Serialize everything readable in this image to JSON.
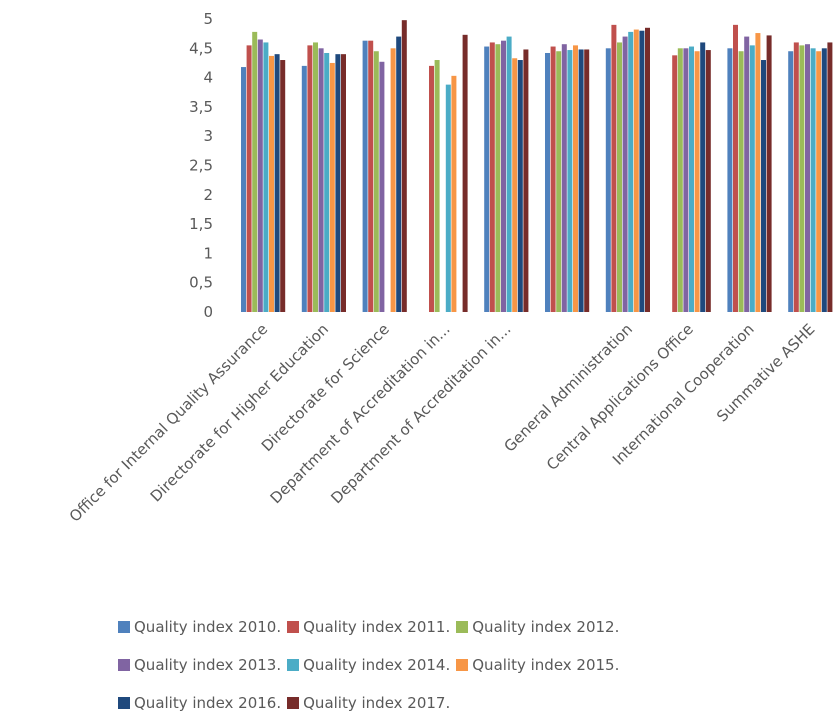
{
  "chart_data": {
    "type": "bar",
    "title": "",
    "xlabel": "",
    "ylabel": "",
    "ylim": [
      0,
      5
    ],
    "ytick_labels": [
      "0",
      "0,5",
      "1",
      "1,5",
      "2",
      "2,5",
      "3",
      "3,5",
      "4",
      "4,5",
      "5"
    ],
    "grid": false,
    "legend_position": "bottom",
    "categories": [
      "Office for Internal Quality Assurance",
      "Directorate for Higher Education",
      "Directorate for Science",
      "Department of Accreditation in...",
      "Department of Accreditation in...",
      "",
      "General Administration",
      "Central Applications Office",
      "International Cooperation",
      "Summative ASHE"
    ],
    "series": [
      {
        "name": "Quality index 2010.",
        "color": "#4F81BD",
        "values": [
          4.18,
          4.2,
          4.63,
          null,
          4.53,
          4.42,
          4.5,
          null,
          4.5,
          4.45
        ]
      },
      {
        "name": "Quality index 2011.",
        "color": "#C0504D",
        "values": [
          4.55,
          4.55,
          4.63,
          4.2,
          4.6,
          4.53,
          4.9,
          4.38,
          4.9,
          4.6
        ]
      },
      {
        "name": "Quality index 2012.",
        "color": "#9BBB59",
        "values": [
          4.78,
          4.6,
          4.45,
          4.3,
          4.57,
          4.45,
          4.6,
          4.5,
          4.45,
          4.55
        ]
      },
      {
        "name": "Quality index 2013.",
        "color": "#8064A2",
        "values": [
          4.65,
          4.5,
          4.27,
          null,
          4.63,
          4.57,
          4.7,
          4.5,
          4.7,
          4.57
        ]
      },
      {
        "name": "Quality index 2014.",
        "color": "#4BACC6",
        "values": [
          4.6,
          4.42,
          null,
          3.88,
          4.7,
          4.47,
          4.78,
          4.53,
          4.55,
          4.5
        ]
      },
      {
        "name": "Quality index 2015.",
        "color": "#F79646",
        "values": [
          4.37,
          4.25,
          4.5,
          4.03,
          4.33,
          4.55,
          4.82,
          4.45,
          4.76,
          4.45
        ]
      },
      {
        "name": "Quality index 2016.",
        "color": "#1F497D",
        "values": [
          4.4,
          4.4,
          4.7,
          null,
          4.3,
          4.48,
          4.8,
          4.6,
          4.3,
          4.5
        ]
      },
      {
        "name": "Quality index 2017.",
        "color": "#772C2A",
        "values": [
          4.3,
          4.4,
          4.98,
          4.73,
          4.48,
          4.48,
          4.85,
          4.47,
          4.72,
          4.6
        ]
      }
    ]
  }
}
